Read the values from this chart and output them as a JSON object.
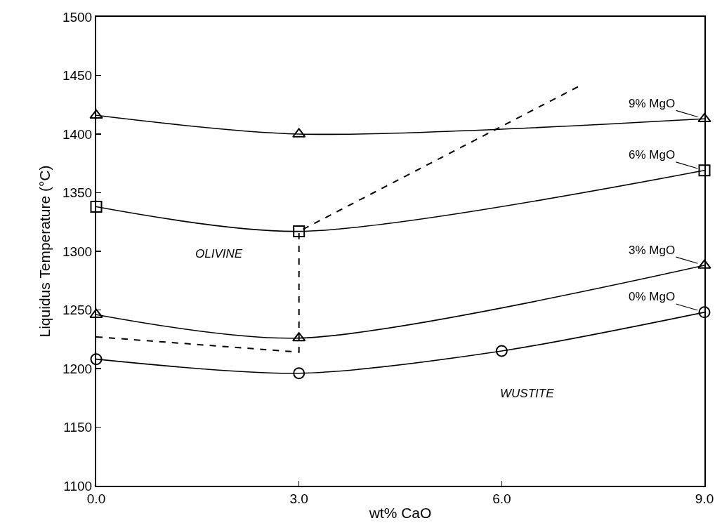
{
  "chart_data": {
    "type": "line",
    "xlabel": "wt% CaO",
    "ylabel": "Liquidus Temperature (°C)",
    "xlim": [
      0,
      9
    ],
    "xticks": [
      {
        "value": 0,
        "label": "0.0"
      },
      {
        "value": 3,
        "label": "3.0"
      },
      {
        "value": 6,
        "label": "6.0"
      },
      {
        "value": 9,
        "label": "9.0"
      }
    ],
    "ylim": [
      1100,
      1500
    ],
    "yticks": [
      1100,
      1150,
      1200,
      1250,
      1300,
      1350,
      1400,
      1450,
      1500
    ],
    "grid": false,
    "line_style": "solid",
    "series": [
      {
        "name": "9% MgO",
        "color": "#000000",
        "marker": "triangle",
        "x": [
          0,
          3,
          9
        ],
        "values": [
          1416,
          1400,
          1413
        ]
      },
      {
        "name": "6% MgO",
        "color": "#000000",
        "marker": "square",
        "x": [
          0,
          3,
          9
        ],
        "values": [
          1338,
          1317,
          1369
        ]
      },
      {
        "name": "3% MgO",
        "color": "#000000",
        "marker": "triangle",
        "x": [
          0,
          3,
          9
        ],
        "values": [
          1246,
          1226,
          1288
        ]
      },
      {
        "name": "0% MgO",
        "color": "#000000",
        "marker": "circle",
        "x": [
          0,
          3,
          6,
          9
        ],
        "values": [
          1208,
          1196,
          1215,
          1248
        ]
      },
      {
        "color": "#000000",
        "marker": "none",
        "line_style": "dashed",
        "x": [
          0,
          3,
          3,
          7.15
        ],
        "values": [
          1227,
          1214,
          1317,
          1441
        ]
      }
    ],
    "annotations": [
      "OLIVINE",
      "WUSTITE"
    ]
  }
}
